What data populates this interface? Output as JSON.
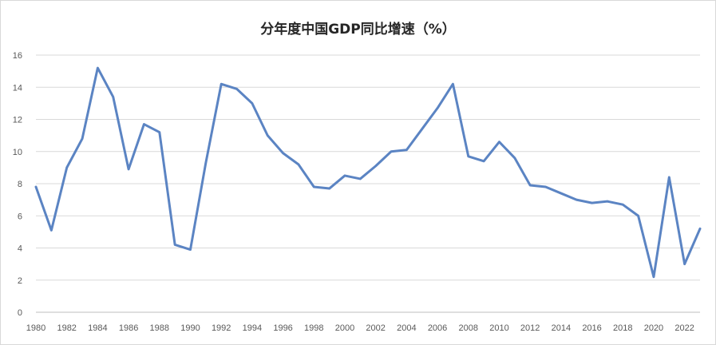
{
  "chart_data": {
    "type": "line",
    "title": "分年度中国GDP同比增速（%）",
    "xlabel": "",
    "ylabel": "",
    "ylim": [
      0,
      16
    ],
    "yticks": [
      0,
      2,
      4,
      6,
      8,
      10,
      12,
      14,
      16
    ],
    "xticks": [
      1980,
      1982,
      1984,
      1986,
      1988,
      1990,
      1992,
      1994,
      1996,
      1998,
      2000,
      2002,
      2004,
      2006,
      2008,
      2010,
      2012,
      2014,
      2016,
      2018,
      2020,
      2022
    ],
    "grid": true,
    "legend": "none",
    "series": [
      {
        "color": "#5b84c3",
        "x": [
          1980,
          1981,
          1982,
          1983,
          1984,
          1985,
          1986,
          1987,
          1988,
          1989,
          1990,
          1991,
          1992,
          1993,
          1994,
          1995,
          1996,
          1997,
          1998,
          1999,
          2000,
          2001,
          2002,
          2003,
          2004,
          2005,
          2006,
          2007,
          2008,
          2009,
          2010,
          2011,
          2012,
          2013,
          2014,
          2015,
          2016,
          2017,
          2018,
          2019,
          2020,
          2021,
          2022,
          2023
        ],
        "values": [
          7.8,
          5.1,
          9.0,
          10.8,
          15.2,
          13.4,
          8.9,
          11.7,
          11.2,
          4.2,
          3.9,
          9.3,
          14.2,
          13.9,
          13.0,
          11.0,
          9.9,
          9.2,
          7.8,
          7.7,
          8.5,
          8.3,
          9.1,
          10.0,
          10.1,
          11.4,
          12.7,
          14.2,
          9.7,
          9.4,
          10.6,
          9.6,
          7.9,
          7.8,
          7.4,
          7.0,
          6.8,
          6.9,
          6.7,
          6.0,
          2.2,
          8.4,
          3.0,
          5.2
        ]
      }
    ]
  }
}
